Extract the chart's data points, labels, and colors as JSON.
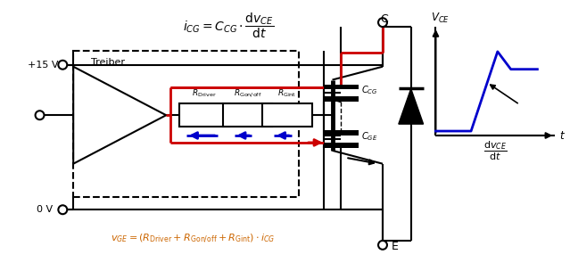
{
  "bg_color": "#ffffff",
  "red_color": "#cc0000",
  "blue_color": "#0000cc",
  "orange_color": "#cc6600",
  "black": "#000000",
  "vplus": "+15 V",
  "vminus": "0 V",
  "treiber": "Treiber",
  "node_C": "C",
  "node_E": "E",
  "label_CCG": "$C_{CG}$",
  "label_CGE": "$C_{GE}$",
  "label_RDriver": "$R_{\\mathrm{Driver}}$",
  "label_RGonoff": "$R_{\\mathrm{Gon/off}}$",
  "label_RGint": "$R_{\\mathrm{Gint}}$",
  "label_VCE": "$V_{CE}$",
  "label_t": "$t$",
  "formula_top": "$i_{CG} = C_{CG} \\cdot \\dfrac{\\mathrm{d}v_{CE}}{\\mathrm{d}t}$",
  "formula_bottom": "$v_{GE} = (R_{\\mathrm{Driver}} + R_{\\mathrm{Gon/off}} + R_{\\mathrm{Gint}}) \\cdot i_{CG}$",
  "label_dvdt": "$\\dfrac{\\mathrm{d}v_{CE}}{\\mathrm{d}t}$"
}
